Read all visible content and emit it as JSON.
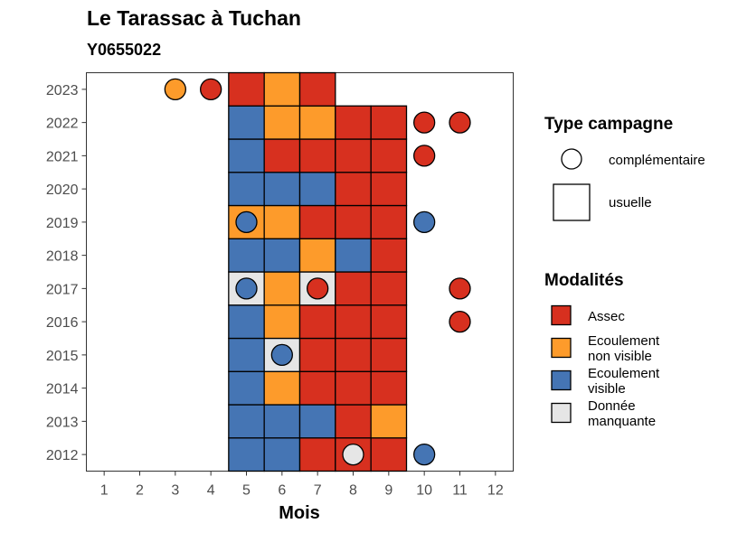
{
  "chart_data": {
    "type": "heatmap",
    "title": "Le Tarassac à Tuchan",
    "subtitle": "Y0655022",
    "xlabel": "Mois",
    "ylabel": "",
    "x_ticks": [
      "1",
      "2",
      "3",
      "4",
      "5",
      "6",
      "7",
      "8",
      "9",
      "10",
      "11",
      "12"
    ],
    "y_ticks": [
      "2012",
      "2013",
      "2014",
      "2015",
      "2016",
      "2017",
      "2018",
      "2019",
      "2020",
      "2021",
      "2022",
      "2023"
    ],
    "xlim": [
      0.5,
      12.5
    ],
    "ylim": [
      2011.5,
      2023.5
    ],
    "colors": {
      "Assec": "#d7301f",
      "Ecoulement non visible": "#fd9b2b",
      "Ecoulement visible": "#4575b4",
      "Donnée manquante": "#e6e6e6"
    },
    "legend_campaign": {
      "title": "Type campagne",
      "items": [
        {
          "key": "complementaire",
          "label": "complémentaire",
          "shape": "circle"
        },
        {
          "key": "usuelle",
          "label": "usuelle",
          "shape": "square"
        }
      ]
    },
    "legend_modalites": {
      "title": "Modalités",
      "items": [
        {
          "key": "Assec",
          "lines": [
            "Assec"
          ]
        },
        {
          "key": "Ecoulement non visible",
          "lines": [
            "Ecoulement",
            "non visible"
          ]
        },
        {
          "key": "Ecoulement visible",
          "lines": [
            "Ecoulement",
            "visible"
          ]
        },
        {
          "key": "Donnée manquante",
          "lines": [
            "Donnée",
            "manquante"
          ]
        }
      ]
    },
    "usuelle": [
      {
        "year": 2012,
        "values": {
          "5": "Ecoulement visible",
          "6": "Ecoulement visible",
          "7": "Assec",
          "8": "Assec",
          "9": "Assec"
        }
      },
      {
        "year": 2013,
        "values": {
          "5": "Ecoulement visible",
          "6": "Ecoulement visible",
          "7": "Ecoulement visible",
          "8": "Assec",
          "9": "Ecoulement non visible"
        }
      },
      {
        "year": 2014,
        "values": {
          "5": "Ecoulement visible",
          "6": "Ecoulement non visible",
          "7": "Assec",
          "8": "Assec",
          "9": "Assec"
        }
      },
      {
        "year": 2015,
        "values": {
          "5": "Ecoulement visible",
          "6": "Donnée manquante",
          "7": "Assec",
          "8": "Assec",
          "9": "Assec"
        }
      },
      {
        "year": 2016,
        "values": {
          "5": "Ecoulement visible",
          "6": "Ecoulement non visible",
          "7": "Assec",
          "8": "Assec",
          "9": "Assec"
        }
      },
      {
        "year": 2017,
        "values": {
          "5": "Donnée manquante",
          "6": "Ecoulement non visible",
          "7": "Donnée manquante",
          "8": "Assec",
          "9": "Assec"
        }
      },
      {
        "year": 2018,
        "values": {
          "5": "Ecoulement visible",
          "6": "Ecoulement visible",
          "7": "Ecoulement non visible",
          "8": "Ecoulement visible",
          "9": "Assec"
        }
      },
      {
        "year": 2019,
        "values": {
          "5": "Ecoulement non visible",
          "6": "Ecoulement non visible",
          "7": "Assec",
          "8": "Assec",
          "9": "Assec"
        }
      },
      {
        "year": 2020,
        "values": {
          "5": "Ecoulement visible",
          "6": "Ecoulement visible",
          "7": "Ecoulement visible",
          "8": "Assec",
          "9": "Assec"
        }
      },
      {
        "year": 2021,
        "values": {
          "5": "Ecoulement visible",
          "6": "Assec",
          "7": "Assec",
          "8": "Assec",
          "9": "Assec"
        }
      },
      {
        "year": 2022,
        "values": {
          "5": "Ecoulement visible",
          "6": "Ecoulement non visible",
          "7": "Ecoulement non visible",
          "8": "Assec",
          "9": "Assec"
        }
      },
      {
        "year": 2023,
        "values": {
          "5": "Assec",
          "6": "Ecoulement non visible",
          "7": "Assec"
        }
      }
    ],
    "complementaire": [
      {
        "year": 2023,
        "month": 3,
        "value": "Ecoulement non visible"
      },
      {
        "year": 2023,
        "month": 4,
        "value": "Assec"
      },
      {
        "year": 2022,
        "month": 10,
        "value": "Assec"
      },
      {
        "year": 2022,
        "month": 11,
        "value": "Assec"
      },
      {
        "year": 2021,
        "month": 10,
        "value": "Assec"
      },
      {
        "year": 2019,
        "month": 5,
        "value": "Ecoulement visible"
      },
      {
        "year": 2019,
        "month": 10,
        "value": "Ecoulement visible"
      },
      {
        "year": 2017,
        "month": 5,
        "value": "Ecoulement visible"
      },
      {
        "year": 2017,
        "month": 7,
        "value": "Assec"
      },
      {
        "year": 2017,
        "month": 11,
        "value": "Assec"
      },
      {
        "year": 2016,
        "month": 11,
        "value": "Assec"
      },
      {
        "year": 2015,
        "month": 6,
        "value": "Ecoulement visible"
      },
      {
        "year": 2012,
        "month": 8,
        "value": "Donnée manquante"
      },
      {
        "year": 2012,
        "month": 10,
        "value": "Ecoulement visible"
      }
    ]
  }
}
